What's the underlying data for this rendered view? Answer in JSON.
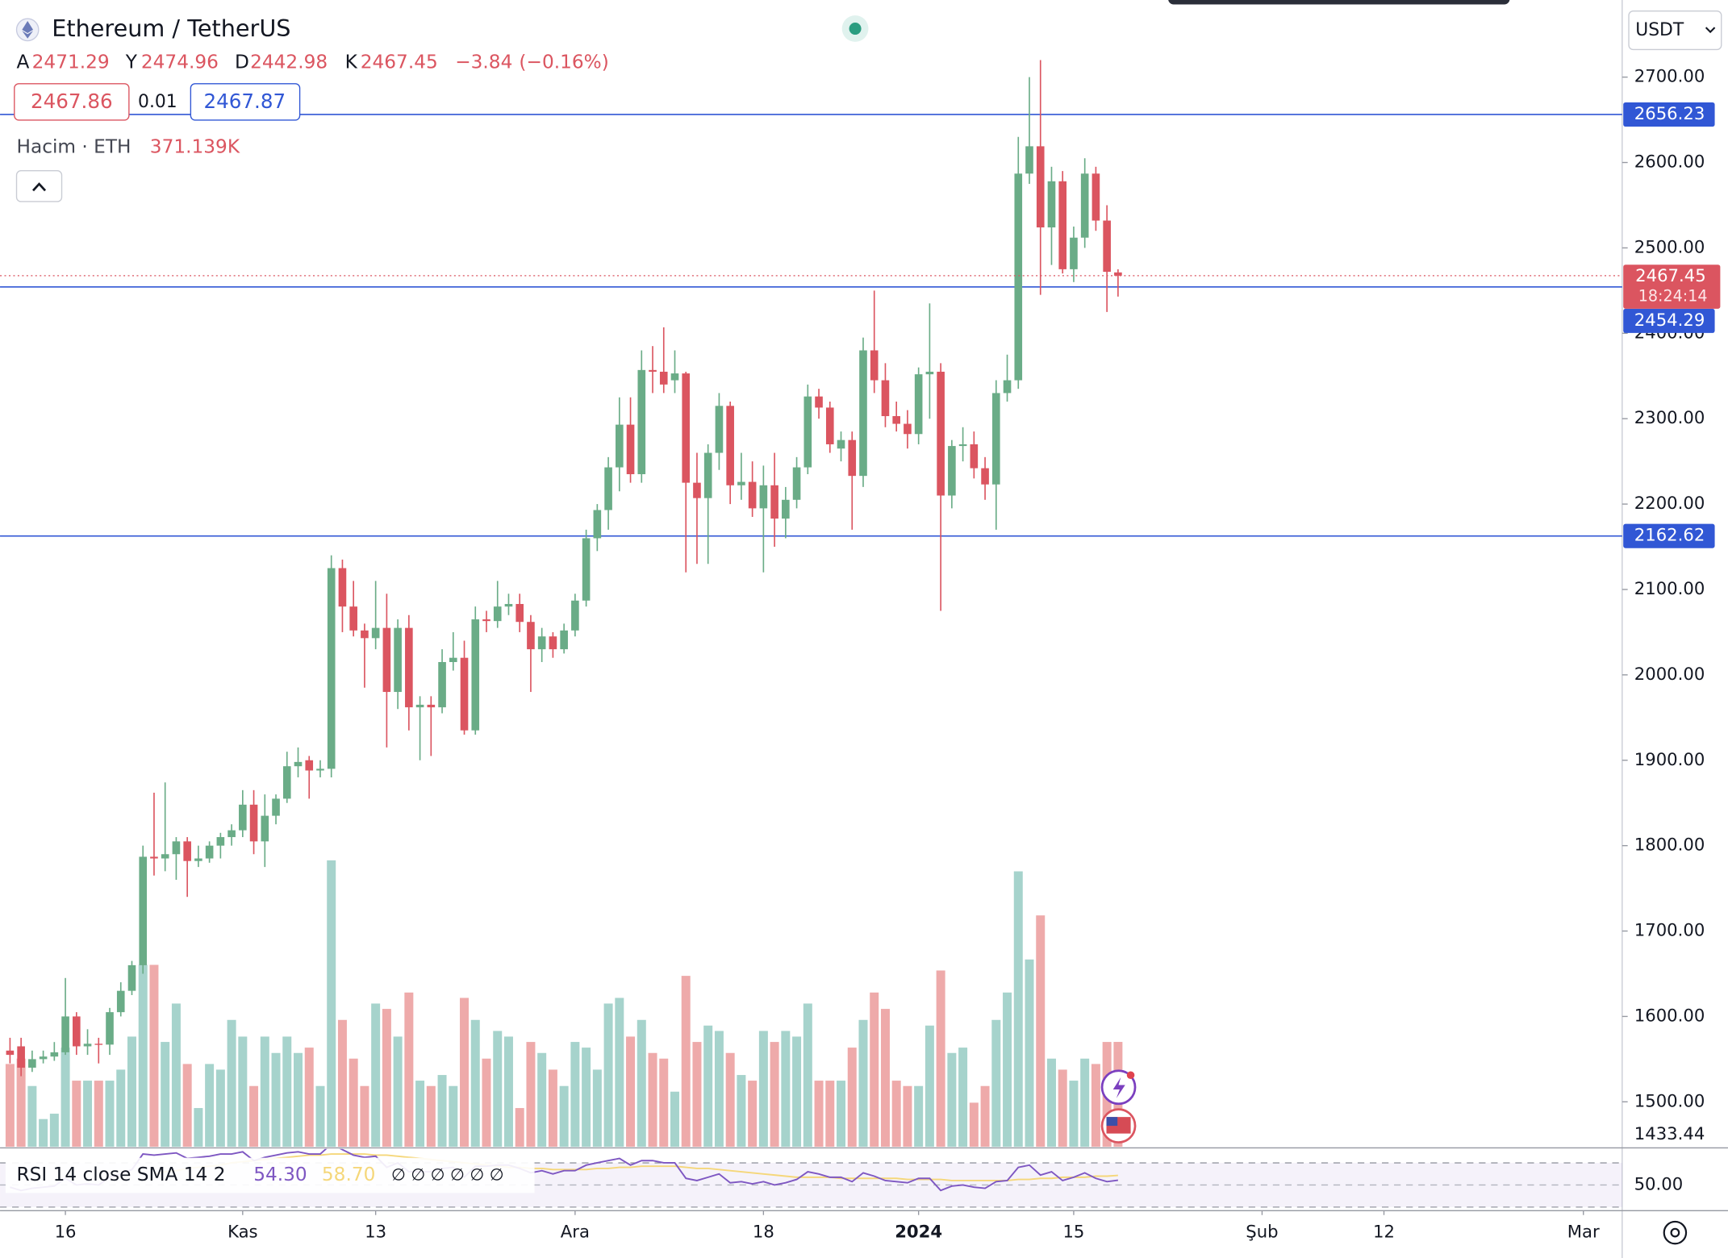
{
  "header": {
    "symbol": "Ethereum / TetherUS",
    "currency": "USDT",
    "bid": 2467.86,
    "spread": 0.01,
    "ask": 2467.87
  },
  "chart_data": {
    "type": "candlestick",
    "legend_keys": {
      "open": "A",
      "high": "Y",
      "low": "D",
      "close": "K"
    },
    "change": {
      "value": -3.84,
      "label": "−3.84"
    },
    "change_pct": {
      "value": -0.16,
      "label": "(−0.16%)"
    },
    "up_color": "#6aac87",
    "down_color": "#db5560",
    "open": [
      1560,
      1565,
      1540,
      1550,
      1553,
      1558,
      1600,
      1565,
      1568,
      1567,
      1605,
      1630,
      1660,
      1787,
      1785,
      1790,
      1805,
      1782,
      1785,
      1800,
      1810,
      1818,
      1848,
      1805,
      1835,
      1855,
      1893,
      1900,
      1888,
      1890,
      2125,
      2080,
      2052,
      2043,
      2055,
      1980,
      2055,
      1962,
      1965,
      1962,
      2015,
      2020,
      1935,
      2065,
      2063,
      2080,
      2083,
      2062,
      2030,
      2045,
      2030,
      2052,
      2087,
      2160,
      2193,
      2243,
      2293,
      2235,
      2357,
      2355,
      2345,
      2353,
      2225,
      2207,
      2260,
      2315,
      2222,
      2226,
      2195,
      2222,
      2183,
      2205,
      2243,
      2326,
      2313,
      2265,
      2275,
      2233,
      2380,
      2345,
      2303,
      2294,
      2282,
      2352,
      2355,
      2210,
      2268,
      2270,
      2242,
      2223,
      2330,
      2345,
      2587,
      2619,
      2524,
      2578,
      2475,
      2512,
      2587,
      2532,
      2471.29
    ],
    "high": [
      1575,
      1575,
      1560,
      1560,
      1570,
      1645,
      1605,
      1585,
      1575,
      1610,
      1640,
      1665,
      1800,
      1862,
      1874,
      1810,
      1810,
      1800,
      1805,
      1815,
      1825,
      1865,
      1865,
      1860,
      1860,
      1910,
      1915,
      1905,
      1900,
      2140,
      2135,
      2110,
      2060,
      2110,
      2095,
      2065,
      2070,
      1975,
      1975,
      2030,
      2050,
      2040,
      2080,
      2075,
      2110,
      2095,
      2095,
      2070,
      2055,
      2050,
      2060,
      2095,
      2170,
      2200,
      2255,
      2325,
      2325,
      2380,
      2385,
      2407,
      2380,
      2355,
      2260,
      2270,
      2330,
      2320,
      2260,
      2250,
      2245,
      2260,
      2220,
      2255,
      2340,
      2335,
      2320,
      2285,
      2285,
      2395,
      2450,
      2365,
      2320,
      2310,
      2360,
      2435,
      2365,
      2275,
      2290,
      2285,
      2255,
      2345,
      2375,
      2630,
      2700,
      2720,
      2595,
      2590,
      2525,
      2605,
      2595,
      2550,
      2474.96
    ],
    "low": [
      1545,
      1530,
      1535,
      1545,
      1548,
      1555,
      1555,
      1555,
      1545,
      1555,
      1600,
      1625,
      1650,
      1765,
      1770,
      1760,
      1740,
      1775,
      1780,
      1785,
      1800,
      1810,
      1790,
      1775,
      1825,
      1850,
      1880,
      1855,
      1880,
      1880,
      2050,
      2045,
      1985,
      2030,
      1915,
      1960,
      1935,
      1900,
      1905,
      1955,
      2005,
      1930,
      1930,
      2050,
      2055,
      2070,
      2050,
      1980,
      2015,
      2020,
      2025,
      2045,
      2080,
      2145,
      2170,
      2215,
      2225,
      2225,
      2330,
      2330,
      2330,
      2120,
      2130,
      2130,
      2240,
      2200,
      2205,
      2185,
      2120,
      2150,
      2160,
      2195,
      2235,
      2300,
      2260,
      2250,
      2170,
      2220,
      2330,
      2290,
      2285,
      2265,
      2270,
      2300,
      2075,
      2195,
      2250,
      2230,
      2205,
      2170,
      2320,
      2335,
      2575,
      2445,
      2480,
      2470,
      2460,
      2500,
      2520,
      2425,
      2442.98
    ],
    "close": [
      1555,
      1540,
      1550,
      1553,
      1558,
      1600,
      1565,
      1568,
      1567,
      1605,
      1630,
      1660,
      1787,
      1785,
      1790,
      1805,
      1782,
      1785,
      1800,
      1810,
      1818,
      1848,
      1805,
      1835,
      1855,
      1893,
      1898,
      1888,
      1890,
      2125,
      2080,
      2052,
      2043,
      2055,
      1980,
      2055,
      1962,
      1965,
      1962,
      2015,
      2020,
      1935,
      2065,
      2063,
      2080,
      2083,
      2062,
      2030,
      2045,
      2030,
      2052,
      2087,
      2160,
      2193,
      2243,
      2293,
      2235,
      2357,
      2355,
      2340,
      2353,
      2225,
      2207,
      2260,
      2315,
      2222,
      2226,
      2195,
      2222,
      2183,
      2205,
      2243,
      2326,
      2313,
      2270,
      2275,
      2233,
      2380,
      2345,
      2303,
      2294,
      2282,
      2352,
      2355,
      2210,
      2268,
      2270,
      2242,
      2223,
      2330,
      2345,
      2587,
      2619,
      2524,
      2578,
      2475,
      2512,
      2587,
      2532,
      2472,
      2467.45
    ],
    "volume": {
      "name": "Hacim · ETH",
      "up_color": "#a6d3cc",
      "down_color": "#eeaaaa",
      "last_label": "371.139K",
      "values": [
        293,
        312,
        215,
        98,
        117,
        351,
        234,
        234,
        234,
        234,
        273,
        390,
        644,
        644,
        371,
        507,
        293,
        137,
        293,
        273,
        449,
        390,
        215,
        390,
        332,
        390,
        332,
        351,
        215,
        1014,
        449,
        312,
        215,
        507,
        488,
        390,
        546,
        234,
        215,
        254,
        215,
        527,
        449,
        312,
        410,
        390,
        137,
        371,
        332,
        273,
        215,
        371,
        351,
        273,
        507,
        527,
        390,
        449,
        332,
        312,
        195,
        605,
        371,
        429,
        410,
        332,
        254,
        234,
        410,
        371,
        410,
        390,
        507,
        234,
        234,
        234,
        351,
        449,
        546,
        488,
        234,
        215,
        215,
        429,
        624,
        332,
        351,
        156,
        215,
        449,
        546,
        975,
        663,
        819,
        312,
        273,
        234,
        312,
        293,
        371,
        371.139
      ]
    },
    "xlim": [
      -0.9,
      145.5
    ],
    "xticks": [
      {
        "value": 5,
        "label": "16"
      },
      {
        "value": 21,
        "label": "Kas"
      },
      {
        "value": 33,
        "label": "13"
      },
      {
        "value": 51,
        "label": "Ara"
      },
      {
        "value": 68,
        "label": "18"
      },
      {
        "value": 82,
        "label": "2024"
      },
      {
        "value": 96,
        "label": "15"
      },
      {
        "value": 113,
        "label": "Şub"
      },
      {
        "value": 124,
        "label": "12"
      },
      {
        "value": 142,
        "label": "Mar"
      }
    ],
    "ylim": [
      1447.4,
      2790.3
    ],
    "yticks": [
      {
        "value": 1500,
        "label": "1500.00"
      },
      {
        "value": 1600,
        "label": "1600.00"
      },
      {
        "value": 1700,
        "label": "1700.00"
      },
      {
        "value": 1800,
        "label": "1800.00"
      },
      {
        "value": 1900,
        "label": "1900.00"
      },
      {
        "value": 2000,
        "label": "2000.00"
      },
      {
        "value": 2100,
        "label": "2100.00"
      },
      {
        "value": 2200,
        "label": "2200.00"
      },
      {
        "value": 2300,
        "label": "2300.00"
      },
      {
        "value": 2400,
        "label": "2400.00"
      },
      {
        "value": 2500,
        "label": "2500.00"
      },
      {
        "value": 2600,
        "label": "2600.00"
      },
      {
        "value": 2700,
        "label": "2700.00"
      }
    ],
    "scale_bottom_label": 1433.44,
    "price_lines": [
      2656.23,
      2454.29,
      2162.62
    ],
    "price_line_color": "#3157d5",
    "countdown": "18:24:14",
    "rsi": {
      "title": "RSI 14 close SMA 14 2",
      "color": "#7e57c2",
      "sma_color": "#f5d77a",
      "last_label": "54.30",
      "sma_last_label": "58.70",
      "empty_markers": "∅ ∅ ∅ ∅ ∅ ∅",
      "ylim": [
        26.8,
        82.6
      ],
      "yticks": [
        {
          "value": 50,
          "label": "50.00"
        }
      ],
      "bands": [
        30,
        70
      ],
      "values": [
        48,
        45,
        47,
        48,
        49,
        56,
        50,
        51,
        50,
        57,
        60,
        64,
        78,
        77,
        78,
        79,
        74,
        75,
        76,
        78,
        78,
        80,
        72,
        75,
        77,
        79,
        80,
        78,
        78,
        87,
        82,
        77,
        75,
        76,
        66,
        70,
        62,
        62,
        62,
        65,
        66,
        57,
        67,
        67,
        68,
        68,
        65,
        61,
        63,
        60,
        63,
        63,
        68,
        70,
        72,
        74,
        68,
        72,
        72,
        70,
        70,
        56,
        54,
        57,
        60,
        52,
        53,
        51,
        53,
        50,
        52,
        55,
        62,
        60,
        57,
        57,
        53,
        61,
        58,
        54,
        53,
        52,
        56,
        56,
        45,
        49,
        50,
        48,
        47,
        53,
        54,
        66,
        68,
        59,
        62,
        54,
        57,
        61,
        56,
        53,
        54.3
      ],
      "sma": [
        null,
        null,
        null,
        null,
        null,
        null,
        null,
        null,
        null,
        null,
        null,
        null,
        null,
        60,
        62,
        63,
        65,
        66,
        67,
        68,
        70,
        71,
        72,
        73,
        74,
        75,
        76,
        77,
        77,
        78,
        78,
        78,
        78,
        77,
        77,
        76,
        75,
        74,
        73,
        72,
        71,
        70,
        69,
        68,
        67,
        66,
        66,
        65,
        65,
        64,
        64,
        64,
        64,
        65,
        65,
        66,
        66,
        67,
        67,
        67,
        67,
        66,
        65,
        65,
        64,
        63,
        62,
        61,
        60,
        59,
        58,
        57,
        57,
        57,
        57,
        56,
        56,
        56,
        56,
        56,
        56,
        55,
        55,
        55,
        55,
        54,
        54,
        54,
        54,
        54,
        54,
        55,
        55,
        56,
        56,
        57,
        57,
        57,
        58,
        58,
        58.7
      ]
    }
  }
}
